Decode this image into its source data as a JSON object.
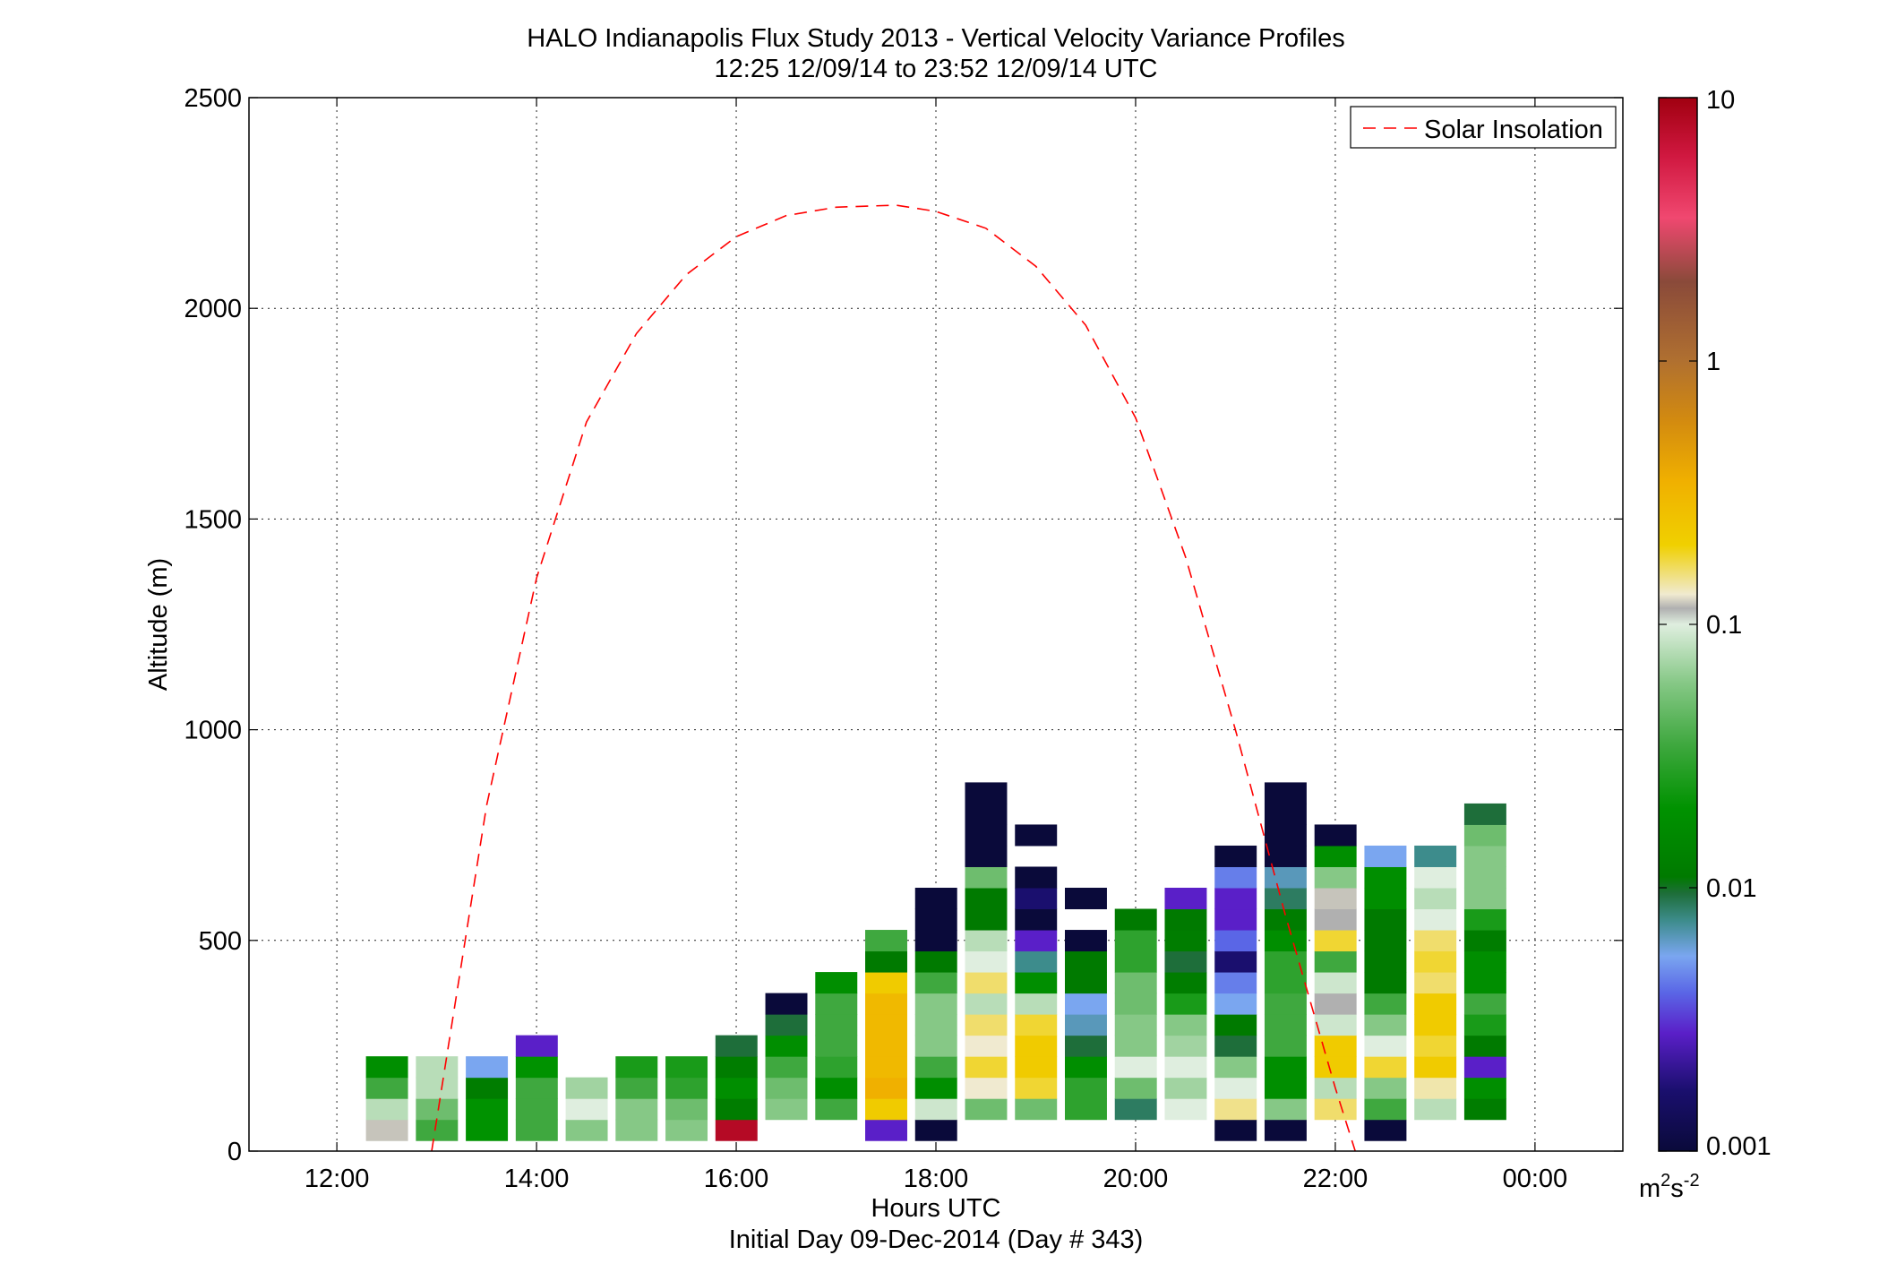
{
  "chart_data": {
    "type": "heatmap",
    "title": "HALO Indianapolis Flux Study 2013 - Vertical Velocity Variance Profiles",
    "subtitle": "12:25 12/09/14 to 23:52 12/09/14  UTC",
    "xlabel": "Hours UTC",
    "xlabel2": "Initial Day 09-Dec-2014 (Day # 343)",
    "ylabel": "Altitude (m)",
    "x_unit": "hours UTC",
    "xlim": [
      11.12,
      24.88
    ],
    "ylim": [
      0,
      2500
    ],
    "x_ticks": [
      {
        "value": 12,
        "label": "12:00"
      },
      {
        "value": 14,
        "label": "14:00"
      },
      {
        "value": 16,
        "label": "16:00"
      },
      {
        "value": 18,
        "label": "18:00"
      },
      {
        "value": 20,
        "label": "20:00"
      },
      {
        "value": 22,
        "label": "22:00"
      },
      {
        "value": 24,
        "label": "00:00"
      }
    ],
    "y_ticks": [
      0,
      500,
      1000,
      1500,
      2000,
      2500
    ],
    "grid": true,
    "legend_position": "top-right",
    "line_series": {
      "name": "Solar Insolation",
      "color": "#ff0000",
      "style": "dashed",
      "points": [
        [
          12.95,
          0
        ],
        [
          13.5,
          820
        ],
        [
          14.0,
          1360
        ],
        [
          14.5,
          1730
        ],
        [
          15.0,
          1940
        ],
        [
          15.5,
          2080
        ],
        [
          16.0,
          2170
        ],
        [
          16.5,
          2220
        ],
        [
          17.0,
          2240
        ],
        [
          17.6,
          2245
        ],
        [
          18.0,
          2230
        ],
        [
          18.5,
          2190
        ],
        [
          19.0,
          2100
        ],
        [
          19.5,
          1960
        ],
        [
          20.0,
          1740
        ],
        [
          20.5,
          1410
        ],
        [
          21.0,
          1000
        ],
        [
          21.5,
          560
        ],
        [
          22.0,
          150
        ],
        [
          22.2,
          0
        ]
      ]
    },
    "colorbar": {
      "label": "m²s⁻²",
      "label_base": "m",
      "label_exp1": "2",
      "label_mid": "s",
      "label_exp2": "-2",
      "scale": "log",
      "range": [
        0.001,
        10
      ],
      "ticks": [
        {
          "value": 0.001,
          "label": "0.001"
        },
        {
          "value": 0.01,
          "label": "0.01"
        },
        {
          "value": 0.1,
          "label": "0.1"
        },
        {
          "value": 1,
          "label": "1"
        },
        {
          "value": 10,
          "label": "10"
        }
      ],
      "stops": [
        {
          "v": 0.001,
          "color": "#0a0a3a"
        },
        {
          "v": 0.0017,
          "color": "#1a0f6e"
        },
        {
          "v": 0.0028,
          "color": "#5a1fc8"
        },
        {
          "v": 0.004,
          "color": "#5a66e6"
        },
        {
          "v": 0.0055,
          "color": "#7aa6f0"
        },
        {
          "v": 0.0075,
          "color": "#3d8c8c"
        },
        {
          "v": 0.0095,
          "color": "#1e6e3a"
        },
        {
          "v": 0.011,
          "color": "#007a00"
        },
        {
          "v": 0.02,
          "color": "#009200"
        },
        {
          "v": 0.035,
          "color": "#3fa83f"
        },
        {
          "v": 0.06,
          "color": "#86c886"
        },
        {
          "v": 0.1,
          "color": "#dfeedf"
        },
        {
          "v": 0.115,
          "color": "#b0b0b0"
        },
        {
          "v": 0.13,
          "color": "#f0ead0"
        },
        {
          "v": 0.2,
          "color": "#f0d000"
        },
        {
          "v": 0.35,
          "color": "#f0b000"
        },
        {
          "v": 0.6,
          "color": "#d28a10"
        },
        {
          "v": 1.0,
          "color": "#b07030"
        },
        {
          "v": 2.0,
          "color": "#8a4a3a"
        },
        {
          "v": 3.5,
          "color": "#f04870"
        },
        {
          "v": 6.0,
          "color": "#d01840"
        },
        {
          "v": 10.0,
          "color": "#a00010"
        }
      ]
    },
    "heatmap": {
      "bin_width_hours": 0.4167,
      "bin_height_m": 50,
      "note": "",
      "cells": [
        [
          12.5,
          50,
          0.12
        ],
        [
          12.5,
          100,
          0.08
        ],
        [
          12.5,
          150,
          0.035
        ],
        [
          12.5,
          200,
          0.018
        ],
        [
          13.0,
          50,
          0.035
        ],
        [
          13.0,
          100,
          0.05
        ],
        [
          13.0,
          150,
          0.08
        ],
        [
          13.0,
          200,
          0.08
        ],
        [
          13.5,
          50,
          0.02
        ],
        [
          13.5,
          100,
          0.02
        ],
        [
          13.5,
          150,
          0.012
        ],
        [
          13.5,
          200,
          0.0055
        ],
        [
          14.0,
          50,
          0.035
        ],
        [
          14.0,
          100,
          0.035
        ],
        [
          14.0,
          150,
          0.035
        ],
        [
          14.0,
          200,
          0.02
        ],
        [
          14.0,
          250,
          0.0028
        ],
        [
          14.5,
          50,
          0.06
        ],
        [
          14.5,
          100,
          0.1
        ],
        [
          14.5,
          150,
          0.07
        ],
        [
          15.0,
          50,
          0.06
        ],
        [
          15.0,
          100,
          0.06
        ],
        [
          15.0,
          150,
          0.035
        ],
        [
          15.0,
          200,
          0.025
        ],
        [
          15.5,
          50,
          0.06
        ],
        [
          15.5,
          100,
          0.05
        ],
        [
          15.5,
          150,
          0.03
        ],
        [
          15.5,
          200,
          0.025
        ],
        [
          16.0,
          50,
          8.0
        ],
        [
          16.0,
          100,
          0.012
        ],
        [
          16.0,
          150,
          0.018
        ],
        [
          16.0,
          200,
          0.012
        ],
        [
          16.0,
          250,
          0.0095
        ],
        [
          16.5,
          100,
          0.06
        ],
        [
          16.5,
          150,
          0.05
        ],
        [
          16.5,
          200,
          0.035
        ],
        [
          16.5,
          250,
          0.018
        ],
        [
          16.5,
          300,
          0.0095
        ],
        [
          16.5,
          350,
          0.001
        ],
        [
          17.0,
          100,
          0.035
        ],
        [
          17.0,
          150,
          0.018
        ],
        [
          17.0,
          200,
          0.03
        ],
        [
          17.0,
          250,
          0.035
        ],
        [
          17.0,
          300,
          0.035
        ],
        [
          17.0,
          350,
          0.035
        ],
        [
          17.0,
          400,
          0.018
        ],
        [
          17.5,
          50,
          0.0028
        ],
        [
          17.5,
          100,
          0.22
        ],
        [
          17.5,
          150,
          0.35
        ],
        [
          17.5,
          200,
          0.3
        ],
        [
          17.5,
          250,
          0.3
        ],
        [
          17.5,
          300,
          0.3
        ],
        [
          17.5,
          350,
          0.3
        ],
        [
          17.5,
          400,
          0.22
        ],
        [
          17.5,
          450,
          0.011
        ],
        [
          17.5,
          500,
          0.035
        ],
        [
          18.0,
          50,
          0.001
        ],
        [
          18.0,
          100,
          0.09
        ],
        [
          18.0,
          150,
          0.018
        ],
        [
          18.0,
          200,
          0.035
        ],
        [
          18.0,
          250,
          0.06
        ],
        [
          18.0,
          300,
          0.06
        ],
        [
          18.0,
          350,
          0.06
        ],
        [
          18.0,
          400,
          0.035
        ],
        [
          18.0,
          450,
          0.011
        ],
        [
          18.0,
          500,
          0.001
        ],
        [
          18.0,
          550,
          0.001
        ],
        [
          18.0,
          600,
          0.001
        ],
        [
          18.5,
          100,
          0.05
        ],
        [
          18.5,
          150,
          0.13
        ],
        [
          18.5,
          200,
          0.18
        ],
        [
          18.5,
          250,
          0.13
        ],
        [
          18.5,
          300,
          0.16
        ],
        [
          18.5,
          350,
          0.08
        ],
        [
          18.5,
          400,
          0.16
        ],
        [
          18.5,
          450,
          0.1
        ],
        [
          18.5,
          500,
          0.08
        ],
        [
          18.5,
          550,
          0.011
        ],
        [
          18.5,
          600,
          0.011
        ],
        [
          18.5,
          650,
          0.05
        ],
        [
          18.5,
          700,
          0.001
        ],
        [
          18.5,
          750,
          0.001
        ],
        [
          18.5,
          800,
          0.001
        ],
        [
          18.5,
          850,
          0.001
        ],
        [
          19.0,
          100,
          0.05
        ],
        [
          19.0,
          150,
          0.18
        ],
        [
          19.0,
          200,
          0.22
        ],
        [
          19.0,
          250,
          0.22
        ],
        [
          19.0,
          300,
          0.18
        ],
        [
          19.0,
          350,
          0.08
        ],
        [
          19.0,
          400,
          0.018
        ],
        [
          19.0,
          450,
          0.0075
        ],
        [
          19.0,
          500,
          0.0028
        ],
        [
          19.0,
          550,
          0.001
        ],
        [
          19.0,
          600,
          0.0017
        ],
        [
          19.0,
          650,
          0.001
        ],
        [
          19.0,
          750,
          0.001
        ],
        [
          19.5,
          100,
          0.03
        ],
        [
          19.5,
          150,
          0.03
        ],
        [
          19.5,
          200,
          0.018
        ],
        [
          19.5,
          250,
          0.0095
        ],
        [
          19.5,
          300,
          0.0065
        ],
        [
          19.5,
          350,
          0.0055
        ],
        [
          19.5,
          400,
          0.011
        ],
        [
          19.5,
          450,
          0.011
        ],
        [
          19.5,
          500,
          0.001
        ],
        [
          19.5,
          600,
          0.001
        ],
        [
          20.0,
          100,
          0.0085
        ],
        [
          20.0,
          150,
          0.05
        ],
        [
          20.0,
          200,
          0.1
        ],
        [
          20.0,
          250,
          0.06
        ],
        [
          20.0,
          300,
          0.06
        ],
        [
          20.0,
          350,
          0.05
        ],
        [
          20.0,
          400,
          0.05
        ],
        [
          20.0,
          450,
          0.03
        ],
        [
          20.0,
          500,
          0.03
        ],
        [
          20.0,
          550,
          0.011
        ],
        [
          20.5,
          100,
          0.1
        ],
        [
          20.5,
          150,
          0.07
        ],
        [
          20.5,
          200,
          0.1
        ],
        [
          20.5,
          250,
          0.07
        ],
        [
          20.5,
          300,
          0.06
        ],
        [
          20.5,
          350,
          0.025
        ],
        [
          20.5,
          400,
          0.012
        ],
        [
          20.5,
          450,
          0.0095
        ],
        [
          20.5,
          500,
          0.012
        ],
        [
          20.5,
          550,
          0.011
        ],
        [
          20.5,
          600,
          0.0028
        ],
        [
          21.0,
          50,
          0.001
        ],
        [
          21.0,
          100,
          0.15
        ],
        [
          21.0,
          150,
          0.1
        ],
        [
          21.0,
          200,
          0.06
        ],
        [
          21.0,
          250,
          0.0095
        ],
        [
          21.0,
          300,
          0.011
        ],
        [
          21.0,
          350,
          0.0055
        ],
        [
          21.0,
          400,
          0.0045
        ],
        [
          21.0,
          450,
          0.0017
        ],
        [
          21.0,
          500,
          0.004
        ],
        [
          21.0,
          550,
          0.0028
        ],
        [
          21.0,
          600,
          0.0028
        ],
        [
          21.0,
          650,
          0.0045
        ],
        [
          21.0,
          700,
          0.001
        ],
        [
          21.5,
          50,
          0.001
        ],
        [
          21.5,
          100,
          0.06
        ],
        [
          21.5,
          150,
          0.018
        ],
        [
          21.5,
          200,
          0.018
        ],
        [
          21.5,
          250,
          0.035
        ],
        [
          21.5,
          300,
          0.035
        ],
        [
          21.5,
          350,
          0.035
        ],
        [
          21.5,
          400,
          0.03
        ],
        [
          21.5,
          450,
          0.03
        ],
        [
          21.5,
          500,
          0.018
        ],
        [
          21.5,
          550,
          0.012
        ],
        [
          21.5,
          600,
          0.0085
        ],
        [
          21.5,
          650,
          0.0065
        ],
        [
          21.5,
          700,
          0.001
        ],
        [
          21.5,
          750,
          0.001
        ],
        [
          21.5,
          800,
          0.001
        ],
        [
          21.5,
          850,
          0.001
        ],
        [
          22.0,
          100,
          0.16
        ],
        [
          22.0,
          150,
          0.08
        ],
        [
          22.0,
          200,
          0.22
        ],
        [
          22.0,
          250,
          0.22
        ],
        [
          22.0,
          300,
          0.09
        ],
        [
          22.0,
          350,
          0.115
        ],
        [
          22.0,
          400,
          0.09
        ],
        [
          22.0,
          450,
          0.035
        ],
        [
          22.0,
          500,
          0.18
        ],
        [
          22.0,
          550,
          0.115
        ],
        [
          22.0,
          600,
          0.12
        ],
        [
          22.0,
          650,
          0.06
        ],
        [
          22.0,
          700,
          0.018
        ],
        [
          22.0,
          750,
          0.001
        ],
        [
          22.5,
          50,
          0.001
        ],
        [
          22.5,
          100,
          0.035
        ],
        [
          22.5,
          150,
          0.06
        ],
        [
          22.5,
          200,
          0.18
        ],
        [
          22.5,
          250,
          0.1
        ],
        [
          22.5,
          300,
          0.06
        ],
        [
          22.5,
          350,
          0.035
        ],
        [
          22.5,
          400,
          0.011
        ],
        [
          22.5,
          450,
          0.011
        ],
        [
          22.5,
          500,
          0.011
        ],
        [
          22.5,
          550,
          0.011
        ],
        [
          22.5,
          600,
          0.018
        ],
        [
          22.5,
          650,
          0.018
        ],
        [
          22.5,
          700,
          0.0055
        ],
        [
          23.0,
          100,
          0.08
        ],
        [
          23.0,
          150,
          0.14
        ],
        [
          23.0,
          200,
          0.22
        ],
        [
          23.0,
          250,
          0.18
        ],
        [
          23.0,
          300,
          0.22
        ],
        [
          23.0,
          350,
          0.22
        ],
        [
          23.0,
          400,
          0.16
        ],
        [
          23.0,
          450,
          0.18
        ],
        [
          23.0,
          500,
          0.16
        ],
        [
          23.0,
          550,
          0.1
        ],
        [
          23.0,
          600,
          0.08
        ],
        [
          23.0,
          650,
          0.1
        ],
        [
          23.0,
          700,
          0.0075
        ],
        [
          23.5,
          100,
          0.012
        ],
        [
          23.5,
          150,
          0.018
        ],
        [
          23.5,
          200,
          0.0028
        ],
        [
          23.5,
          250,
          0.011
        ],
        [
          23.5,
          300,
          0.025
        ],
        [
          23.5,
          350,
          0.035
        ],
        [
          23.5,
          400,
          0.018
        ],
        [
          23.5,
          450,
          0.018
        ],
        [
          23.5,
          500,
          0.012
        ],
        [
          23.5,
          550,
          0.025
        ],
        [
          23.5,
          600,
          0.06
        ],
        [
          23.5,
          650,
          0.06
        ],
        [
          23.5,
          700,
          0.06
        ],
        [
          23.5,
          750,
          0.05
        ],
        [
          23.5,
          800,
          0.0095
        ]
      ]
    }
  },
  "legend": {
    "label": "Solar Insolation"
  }
}
